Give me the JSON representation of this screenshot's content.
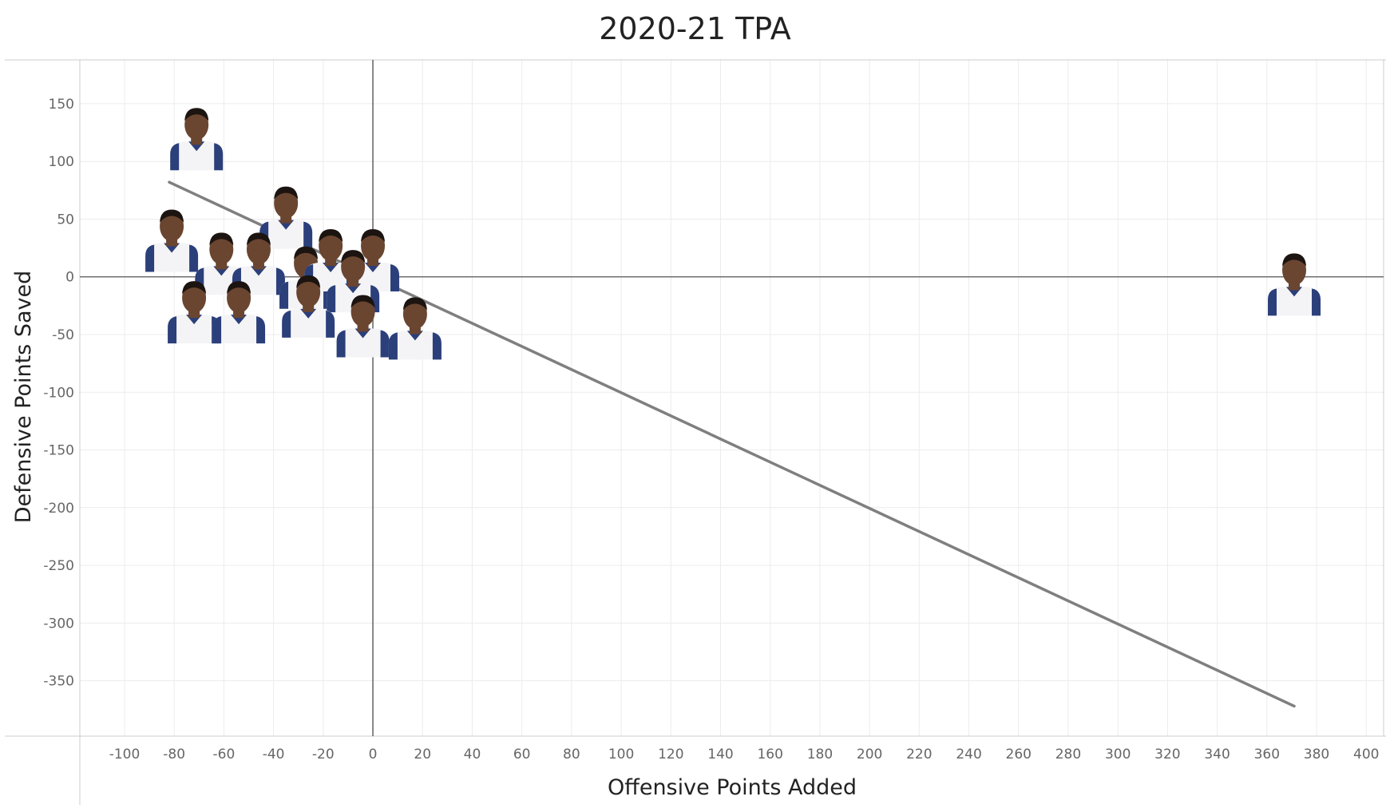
{
  "chart_data": {
    "type": "scatter",
    "title": "2020-21 TPA",
    "xlabel": "Offensive Points Added",
    "ylabel": "Defensive Points Saved",
    "xlim": [
      -118,
      407
    ],
    "ylim": [
      -398,
      188
    ],
    "x_ticks": [
      -100,
      -80,
      -60,
      -40,
      -20,
      0,
      20,
      40,
      60,
      80,
      100,
      120,
      140,
      160,
      180,
      200,
      220,
      240,
      260,
      280,
      300,
      320,
      340,
      360,
      380,
      400
    ],
    "y_ticks": [
      150,
      100,
      50,
      0,
      -50,
      -100,
      -150,
      -200,
      -250,
      -300,
      -350
    ],
    "grid": true,
    "series": [
      {
        "marker": "player-headshot",
        "points": [
          {
            "x": -71,
            "y": 120
          },
          {
            "x": -81,
            "y": 32
          },
          {
            "x": -35,
            "y": 52
          },
          {
            "x": -61,
            "y": 12
          },
          {
            "x": -46,
            "y": 12
          },
          {
            "x": -27,
            "y": 0
          },
          {
            "x": -17,
            "y": 15
          },
          {
            "x": 0,
            "y": 15
          },
          {
            "x": -8,
            "y": -3
          },
          {
            "x": -72,
            "y": -30
          },
          {
            "x": -54,
            "y": -30
          },
          {
            "x": -26,
            "y": -25
          },
          {
            "x": -4,
            "y": -42
          },
          {
            "x": 17,
            "y": -44
          },
          {
            "x": 371,
            "y": -6
          }
        ]
      }
    ],
    "trend_line": {
      "x": [
        -82,
        371
      ],
      "y": [
        82,
        -372
      ]
    },
    "colors": {
      "trend_line": "#7f7f7f",
      "grid": "#ececec",
      "zero_line": "#555555",
      "axis": "#cccccc",
      "jersey": "#f4f4f6",
      "jersey_trim": "#2b3f7a",
      "skin": "#6a4530"
    }
  }
}
